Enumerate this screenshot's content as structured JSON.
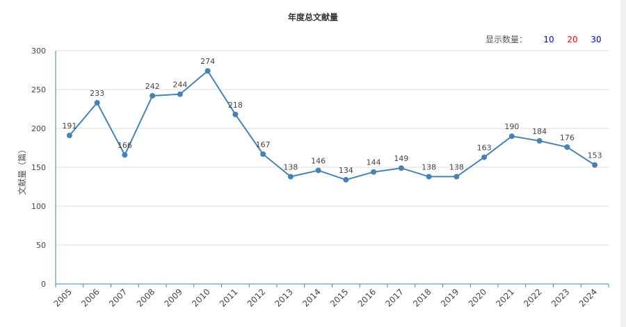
{
  "chart_data": {
    "type": "line",
    "title": "年度总文献量",
    "ylabel": "文献量（篇）",
    "xlabel": "",
    "ylim": [
      0,
      300
    ],
    "yticks": [
      0,
      50,
      100,
      150,
      200,
      250,
      300
    ],
    "grid": true,
    "categories": [
      "2005",
      "2006",
      "2007",
      "2008",
      "2009",
      "2010",
      "2011",
      "2012",
      "2013",
      "2014",
      "2015",
      "2016",
      "2017",
      "2018",
      "2019",
      "2020",
      "2021",
      "2022",
      "2023",
      "2024"
    ],
    "values": [
      191,
      233,
      166,
      242,
      244,
      274,
      218,
      167,
      138,
      146,
      134,
      144,
      149,
      138,
      138,
      163,
      190,
      184,
      176,
      153
    ],
    "line_color": "#4682b4",
    "axis_color": "#3a87c8"
  },
  "display_count": {
    "label": "显示数量：",
    "options": [
      {
        "text": "10",
        "color": "#0000cc"
      },
      {
        "text": "20",
        "color": "#ff0000"
      },
      {
        "text": "30",
        "color": "#0000cc"
      }
    ]
  }
}
